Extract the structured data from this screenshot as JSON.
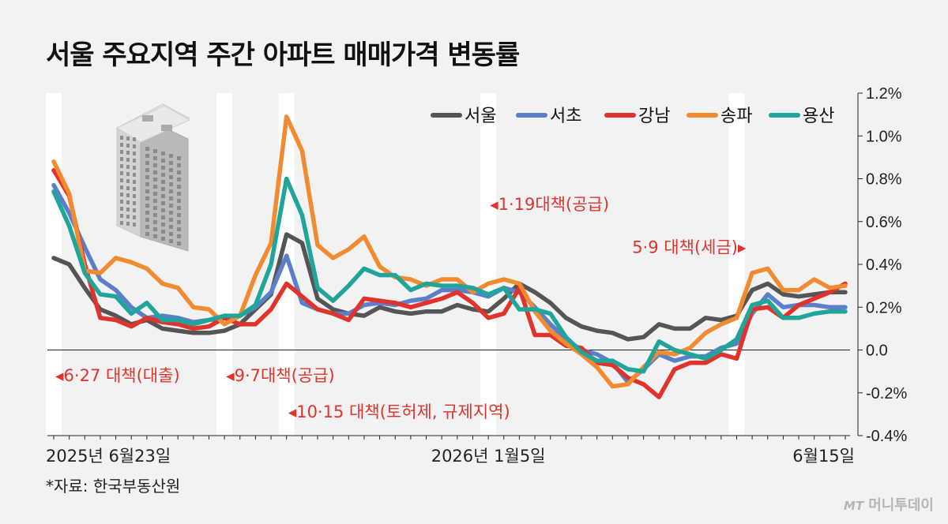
{
  "title": "서울 주요지역 주간 아파트 매매가격 변동률",
  "source": "*자료: 한국부동산원",
  "brand": {
    "prefix": "MT",
    "name": "머니투데이"
  },
  "colors": {
    "seoul": "#555555",
    "seocho": "#5b7fc9",
    "gangnam": "#e0332c",
    "songpa": "#f28a30",
    "yongsan": "#1fa59a",
    "annotation": "#e0332c"
  },
  "illustration": {
    "icon": "apartment-building-icon"
  },
  "chart_data": {
    "type": "line",
    "unit": "%",
    "ylim": [
      -0.4,
      1.2
    ],
    "y_ticks": [
      "1.2%",
      "1.0%",
      "0.8%",
      "0.6%",
      "0.4%",
      "0.2%",
      "0.0",
      "-0.2%",
      "-0.4%"
    ],
    "y_tick_values": [
      1.2,
      1.0,
      0.8,
      0.6,
      0.4,
      0.2,
      0.0,
      -0.2,
      -0.4
    ],
    "x_labels": [
      {
        "index": 0,
        "label": "2025년 6월23일"
      },
      {
        "index": 28,
        "label": "2026년 1월5일"
      },
      {
        "index": 51,
        "label": "6월15일"
      }
    ],
    "legend_position": "top-right",
    "series": [
      {
        "key": "seoul",
        "name": "서울",
        "values": [
          0.43,
          0.4,
          0.29,
          0.19,
          0.16,
          0.12,
          0.14,
          0.1,
          0.09,
          0.08,
          0.08,
          0.09,
          0.12,
          0.19,
          0.26,
          0.54,
          0.5,
          0.24,
          0.19,
          0.17,
          0.16,
          0.2,
          0.18,
          0.17,
          0.18,
          0.18,
          0.21,
          0.19,
          0.18,
          0.24,
          0.31,
          0.27,
          0.22,
          0.15,
          0.11,
          0.09,
          0.08,
          0.05,
          0.06,
          0.12,
          0.1,
          0.1,
          0.15,
          0.14,
          0.16,
          0.28,
          0.31,
          0.26,
          0.25,
          0.26,
          0.27,
          0.27
        ]
      },
      {
        "key": "seocho",
        "name": "서초",
        "values": [
          0.77,
          0.64,
          0.48,
          0.33,
          0.28,
          0.2,
          0.15,
          0.16,
          0.15,
          0.13,
          0.14,
          0.15,
          0.16,
          0.2,
          0.27,
          0.44,
          0.22,
          0.19,
          0.17,
          0.17,
          0.21,
          0.22,
          0.21,
          0.23,
          0.24,
          0.28,
          0.28,
          0.27,
          0.25,
          0.29,
          0.27,
          0.2,
          0.12,
          0.05,
          0.0,
          -0.02,
          -0.06,
          -0.15,
          -0.09,
          -0.02,
          -0.05,
          -0.03,
          -0.03,
          0.01,
          0.03,
          0.17,
          0.26,
          0.2,
          0.21,
          0.21,
          0.2,
          0.2
        ]
      },
      {
        "key": "gangnam",
        "name": "강남",
        "values": [
          0.84,
          0.72,
          0.4,
          0.15,
          0.14,
          0.11,
          0.15,
          0.13,
          0.12,
          0.1,
          0.11,
          0.15,
          0.12,
          0.12,
          0.19,
          0.31,
          0.25,
          0.19,
          0.17,
          0.14,
          0.24,
          0.23,
          0.22,
          0.2,
          0.22,
          0.24,
          0.27,
          0.22,
          0.15,
          0.17,
          0.29,
          0.07,
          0.07,
          0.02,
          0.01,
          -0.06,
          -0.07,
          -0.13,
          -0.16,
          -0.22,
          -0.09,
          -0.06,
          -0.06,
          -0.02,
          -0.04,
          0.19,
          0.2,
          0.15,
          0.21,
          0.24,
          0.27,
          0.31
        ]
      },
      {
        "key": "songpa",
        "name": "송파",
        "values": [
          0.88,
          0.73,
          0.37,
          0.36,
          0.43,
          0.41,
          0.38,
          0.31,
          0.29,
          0.2,
          0.19,
          0.12,
          0.16,
          0.35,
          0.5,
          1.09,
          0.93,
          0.49,
          0.43,
          0.47,
          0.53,
          0.39,
          0.34,
          0.33,
          0.3,
          0.33,
          0.33,
          0.27,
          0.31,
          0.33,
          0.31,
          0.18,
          0.09,
          0.03,
          -0.02,
          -0.08,
          -0.17,
          -0.16,
          -0.08,
          -0.01,
          -0.02,
          0.01,
          0.08,
          0.12,
          0.15,
          0.36,
          0.38,
          0.28,
          0.28,
          0.33,
          0.29,
          0.3
        ]
      },
      {
        "key": "yongsan",
        "name": "용산",
        "values": [
          0.74,
          0.58,
          0.36,
          0.26,
          0.25,
          0.17,
          0.22,
          0.14,
          0.14,
          0.12,
          0.14,
          0.16,
          0.16,
          0.21,
          0.4,
          0.8,
          0.63,
          0.29,
          0.23,
          0.3,
          0.38,
          0.35,
          0.35,
          0.28,
          0.31,
          0.3,
          0.3,
          0.29,
          0.26,
          0.29,
          0.19,
          0.19,
          0.17,
          0.06,
          -0.01,
          -0.05,
          -0.05,
          -0.09,
          -0.1,
          0.04,
          0.0,
          -0.02,
          -0.04,
          0.0,
          0.05,
          0.21,
          0.23,
          0.15,
          0.15,
          0.17,
          0.18,
          0.18
        ]
      }
    ],
    "policy_bands": [
      {
        "index": 0
      },
      {
        "index": 11
      },
      {
        "index": 15
      },
      {
        "index": 28
      },
      {
        "index": 44
      }
    ],
    "annotations": [
      {
        "text": "◂6·27 대책(대출)",
        "index": 0,
        "y": -0.12,
        "anchor": "start"
      },
      {
        "text": "◂9·7대책(공급)",
        "index": 11,
        "y": -0.12,
        "anchor": "start"
      },
      {
        "text": "◂10·15 대책(토허제, 규제지역)",
        "index": 15,
        "y": -0.29,
        "anchor": "start"
      },
      {
        "text": "◂1·19대책(공급)",
        "index": 28,
        "y": 0.68,
        "anchor": "start"
      },
      {
        "text": "5·9 대책(세금)▸",
        "index": 44,
        "y": 0.48,
        "anchor": "end"
      }
    ]
  }
}
